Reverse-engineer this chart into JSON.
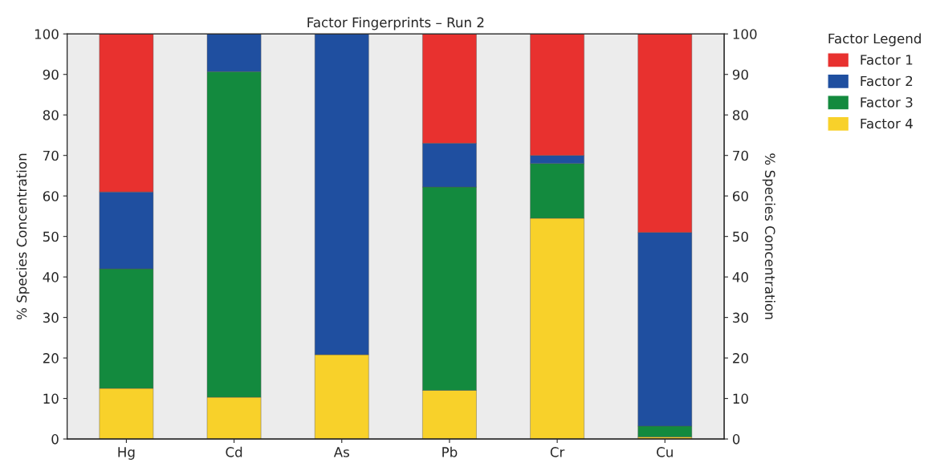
{
  "chart_data": {
    "type": "bar",
    "title": "Factor Fingerprints – Run 2",
    "ylabel": "% Species Concentration",
    "y2label": "% Species Concentration",
    "legend_title": "Factor Legend",
    "categories": [
      "Hg",
      "Cd",
      "As",
      "Pb",
      "Cr",
      "Cu"
    ],
    "stacked": true,
    "series": [
      {
        "name": "Factor 4",
        "color": "#f8d12a",
        "values": [
          12.5,
          10.3,
          20.8,
          12,
          54.5,
          0.5
        ]
      },
      {
        "name": "Factor 3",
        "color": "#138a3e",
        "values": [
          29.5,
          80.4,
          0,
          50.2,
          13.5,
          2.7
        ]
      },
      {
        "name": "Factor 2",
        "color": "#1f4fa0",
        "values": [
          19,
          9.3,
          79.2,
          10.8,
          2,
          47.8
        ]
      },
      {
        "name": "Factor 1",
        "color": "#e8312f",
        "values": [
          39,
          0,
          0,
          27,
          30,
          49
        ]
      }
    ],
    "ylim": [
      0,
      100
    ],
    "yticks": [
      0,
      10,
      20,
      30,
      40,
      50,
      60,
      70,
      80,
      90,
      100
    ],
    "y2lim": [
      0,
      100
    ],
    "y2ticks": [
      0,
      10,
      20,
      30,
      40,
      50,
      60,
      70,
      80,
      90,
      100
    ],
    "legend": "right",
    "grid": false
  }
}
